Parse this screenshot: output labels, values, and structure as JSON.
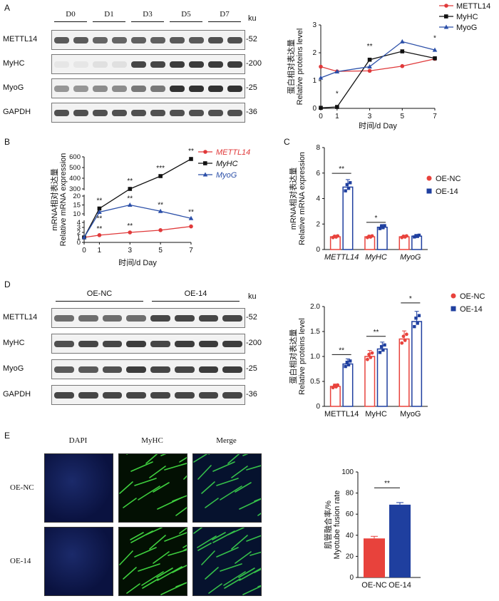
{
  "panels": {
    "A": "A",
    "B": "B",
    "C": "C",
    "D": "D",
    "E": "E"
  },
  "colors": {
    "red": "#e0393a",
    "black": "#111111",
    "blue": "#2b4fa8",
    "bar_red": "#e8423c",
    "bar_blue": "#1f3f9f"
  },
  "panelA": {
    "days": [
      "D0",
      "D1",
      "D3",
      "D5",
      "D7"
    ],
    "ku": "ku",
    "rows": [
      {
        "label": "METTL14",
        "kd": "52",
        "intensity": [
          0.75,
          0.75,
          0.7,
          0.7,
          0.72,
          0.72,
          0.75,
          0.75,
          0.8,
          0.8
        ]
      },
      {
        "label": "MyHC",
        "kd": "200",
        "intensity": [
          0.05,
          0.05,
          0.08,
          0.08,
          0.85,
          0.85,
          0.9,
          0.9,
          0.9,
          0.9
        ]
      },
      {
        "label": "MyoG",
        "kd": "25",
        "intensity": [
          0.45,
          0.45,
          0.5,
          0.5,
          0.6,
          0.6,
          0.95,
          0.95,
          0.95,
          0.95
        ]
      },
      {
        "label": "GAPDH",
        "kd": "36",
        "intensity": [
          0.8,
          0.8,
          0.8,
          0.8,
          0.8,
          0.8,
          0.8,
          0.8,
          0.8,
          0.8
        ]
      }
    ]
  },
  "chart_data": [
    {
      "type": "line",
      "panel": "A-right",
      "ylabel_cn": "蛋白相对表达量",
      "ylabel_en": "Relative proteins level",
      "xlabel": "时间/d Day",
      "x": [
        0,
        1,
        3,
        5,
        7
      ],
      "ylim": [
        0,
        3
      ],
      "yticks": [
        "0",
        "1",
        "2",
        "3"
      ],
      "series": [
        {
          "name": "METTL14",
          "color": "#e0393a",
          "marker": "circle",
          "values": [
            1.5,
            1.33,
            1.35,
            1.52,
            1.78
          ]
        },
        {
          "name": "MyHC",
          "color": "#111111",
          "marker": "square",
          "values": [
            0.02,
            0.05,
            1.75,
            2.05,
            1.8
          ]
        },
        {
          "name": "MyoG",
          "color": "#2b4fa8",
          "marker": "triangle",
          "values": [
            1.1,
            1.32,
            1.5,
            2.4,
            2.1
          ]
        }
      ],
      "annotations": [
        {
          "x": 1,
          "text": "*"
        },
        {
          "x": 3,
          "text": "**"
        },
        {
          "x": 7,
          "text": "*"
        }
      ]
    },
    {
      "type": "line",
      "panel": "B",
      "ylabel_cn": "mRNA相对表达量",
      "ylabel_en": "Relative mRNA expression",
      "xlabel": "时间/d Day",
      "x": [
        0,
        1,
        3,
        5,
        7
      ],
      "yticks_lower": [
        "0",
        "1",
        "2",
        "3",
        "4"
      ],
      "yticks_middle": [
        "10",
        "15",
        "20"
      ],
      "yticks_upper": [
        "300",
        "400",
        "500",
        "600"
      ],
      "series": [
        {
          "name": "METTL14",
          "color": "#e0393a",
          "marker": "circle",
          "values": [
            1,
            1.45,
            2,
            2.45,
            3.2
          ]
        },
        {
          "name": "MyHC",
          "color": "#111111",
          "marker": "square",
          "values": [
            1,
            13,
            300,
            420,
            580
          ]
        },
        {
          "name": "MyoG",
          "color": "#2b4fa8",
          "marker": "triangle",
          "values": [
            1,
            11,
            15,
            11.5,
            7.5
          ]
        }
      ],
      "annotations": [
        "**",
        "**",
        "***",
        "**",
        "**",
        "**",
        "**",
        "**",
        "**",
        "**"
      ]
    },
    {
      "type": "bar",
      "panel": "C",
      "ylabel_cn": "mRNA相对表达量",
      "ylabel_en": "Relative mRNA expression",
      "categories": [
        "METTL14",
        "MyHC",
        "MyoG"
      ],
      "ylim": [
        0,
        8
      ],
      "yticks": [
        "0",
        "2",
        "4",
        "6",
        "8"
      ],
      "series": [
        {
          "name": "OE-NC",
          "color": "#e8423c",
          "values": [
            1.0,
            1.0,
            1.0
          ]
        },
        {
          "name": "OE-14",
          "color": "#1f3f9f",
          "values": [
            4.9,
            1.75,
            1.05
          ]
        }
      ],
      "significance": [
        "**",
        "*",
        ""
      ]
    },
    {
      "type": "bar",
      "panel": "D-right",
      "ylabel_cn": "蛋白相对表达量",
      "ylabel_en": "Relative proteins level",
      "categories": [
        "METTL14",
        "MyHC",
        "MyoG"
      ],
      "ylim": [
        0,
        2.0
      ],
      "yticks": [
        "0",
        "0.5",
        "1.0",
        "1.5",
        "2.0"
      ],
      "series": [
        {
          "name": "OE-NC",
          "color": "#e8423c",
          "values": [
            0.4,
            1.0,
            1.35
          ]
        },
        {
          "name": "OE-14",
          "color": "#1f3f9f",
          "values": [
            0.85,
            1.15,
            1.7
          ]
        }
      ],
      "significance": [
        "**",
        "**",
        "*"
      ]
    },
    {
      "type": "bar",
      "panel": "E-right",
      "ylabel_cn": "肌管融合率/%",
      "ylabel_en": "Myotube fusion rate",
      "categories": [
        "OE-NC",
        "OE-14"
      ],
      "ylim": [
        0,
        100
      ],
      "yticks": [
        "0",
        "20",
        "40",
        "60",
        "80",
        "100"
      ],
      "values": [
        37,
        69
      ],
      "colors": [
        "#e8423c",
        "#1f3f9f"
      ],
      "significance": "**"
    }
  ],
  "panelB": {
    "legend": [
      "METTL14",
      "MyHC",
      "MyoG"
    ]
  },
  "panelD": {
    "groups": [
      "OE-NC",
      "OE-14"
    ],
    "ku": "ku",
    "rows": [
      {
        "label": "METTL14",
        "kd": "52",
        "intensity": [
          0.65,
          0.65,
          0.65,
          0.65,
          0.85,
          0.85,
          0.85,
          0.85
        ]
      },
      {
        "label": "MyHC",
        "kd": "200",
        "intensity": [
          0.8,
          0.85,
          0.85,
          0.9,
          0.85,
          0.9,
          0.9,
          0.9
        ]
      },
      {
        "label": "MyoG",
        "kd": "25",
        "intensity": [
          0.75,
          0.75,
          0.8,
          0.9,
          0.85,
          0.85,
          0.9,
          0.9
        ]
      },
      {
        "label": "GAPDH",
        "kd": "36",
        "intensity": [
          0.85,
          0.85,
          0.85,
          0.85,
          0.85,
          0.85,
          0.85,
          0.85
        ]
      }
    ]
  },
  "panelE": {
    "cols": [
      "DAPI",
      "MyHC",
      "Merge"
    ],
    "rows": [
      "OE-NC",
      "OE-14"
    ]
  }
}
